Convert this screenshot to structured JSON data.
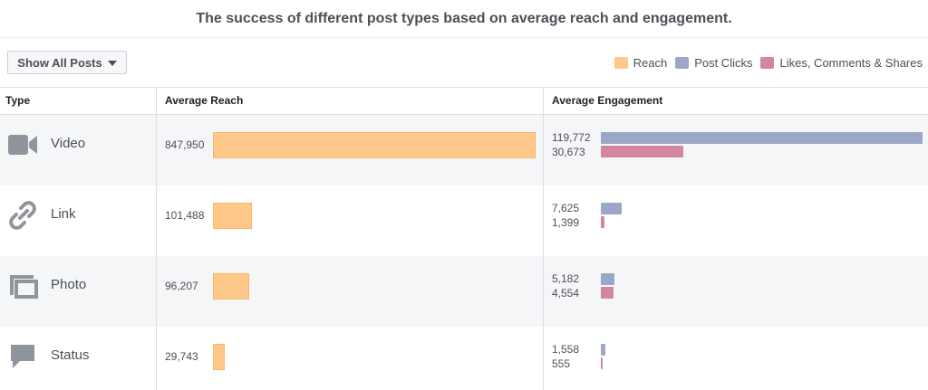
{
  "title": "The success of different post types based on average reach and engagement.",
  "filter": {
    "label": "Show All Posts"
  },
  "legend": [
    {
      "label": "Reach",
      "color": "#fdc889"
    },
    {
      "label": "Post Clicks",
      "color": "#9aa7c9"
    },
    {
      "label": "Likes, Comments & Shares",
      "color": "#d2869f"
    }
  ],
  "columns": {
    "type": "Type",
    "reach": "Average Reach",
    "engagement": "Average Engagement"
  },
  "rows": [
    {
      "type": "Video",
      "icon": "video-camera-icon",
      "reach": "847,950",
      "clicks": "119,772",
      "likes": "30,673"
    },
    {
      "type": "Link",
      "icon": "link-icon",
      "reach": "101,488",
      "clicks": "7,625",
      "likes": "1,399"
    },
    {
      "type": "Photo",
      "icon": "photo-icon",
      "reach": "96,207",
      "clicks": "5,182",
      "likes": "4,554"
    },
    {
      "type": "Status",
      "icon": "speech-bubble-icon",
      "reach": "29,743",
      "clicks": "1,558",
      "likes": "555"
    }
  ],
  "chart_data": {
    "type": "bar",
    "categories": [
      "Video",
      "Link",
      "Photo",
      "Status"
    ],
    "series": [
      {
        "name": "Reach",
        "values": [
          847950,
          101488,
          96207,
          29743
        ]
      },
      {
        "name": "Post Clicks",
        "values": [
          119772,
          7625,
          5182,
          1558
        ]
      },
      {
        "name": "Likes, Comments & Shares",
        "values": [
          30673,
          1399,
          4554,
          555
        ]
      }
    ]
  }
}
